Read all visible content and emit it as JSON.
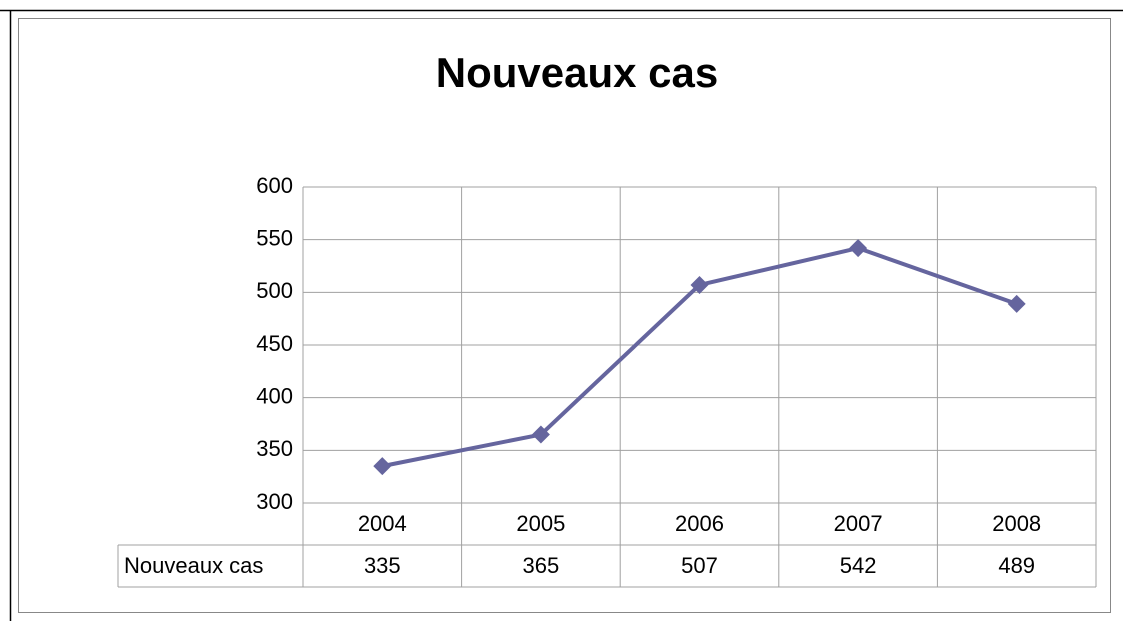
{
  "chart_data": {
    "type": "line",
    "title": "Nouveaux cas",
    "categories": [
      "2004",
      "2005",
      "2006",
      "2007",
      "2008"
    ],
    "series": [
      {
        "name": "Nouveaux cas",
        "color": "#65659e",
        "values": [
          335,
          365,
          507,
          542,
          489
        ]
      }
    ],
    "ylim": [
      300,
      600
    ],
    "yticks": [
      300,
      350,
      400,
      450,
      500,
      550,
      600
    ],
    "grid": true,
    "data_table": true
  }
}
